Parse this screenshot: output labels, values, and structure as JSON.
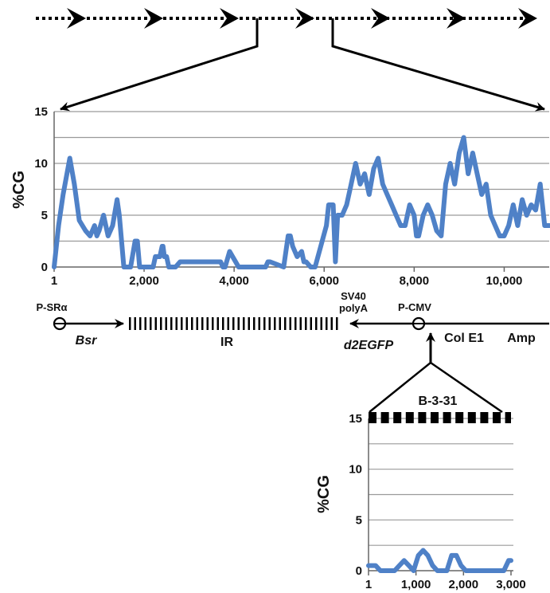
{
  "chart_data": [
    {
      "type": "line",
      "title": "",
      "xlabel": "",
      "ylabel": "%CG",
      "xlim": [
        1,
        11000
      ],
      "ylim": [
        0,
        15
      ],
      "grid": true,
      "x_tick_labels": [
        "1",
        "2,000",
        "4,000",
        "6,000",
        "8,000",
        "10,000"
      ],
      "x_tick_values": [
        1,
        2000,
        4000,
        6000,
        8000,
        10000
      ],
      "y_tick_labels": [
        "0",
        "5",
        "10",
        "15"
      ],
      "y_tick_values": [
        0,
        5,
        10,
        15
      ],
      "series": [
        {
          "color": "#4f81c7",
          "x": [
            1,
            100,
            200,
            350,
            450,
            560,
            700,
            800,
            900,
            950,
            1000,
            1100,
            1200,
            1300,
            1400,
            1450,
            1550,
            1600,
            1700,
            1800,
            1850,
            1900,
            2200,
            2250,
            2350,
            2400,
            2420,
            2450,
            2500,
            2550,
            2600,
            2700,
            2800,
            3700,
            3750,
            3800,
            3900,
            4100,
            4150,
            4200,
            4300,
            4700,
            4750,
            4800,
            5100,
            5200,
            5250,
            5300,
            5400,
            5500,
            5550,
            5600,
            5700,
            5800,
            6050,
            6100,
            6200,
            6250,
            6300,
            6400,
            6500,
            6600,
            6700,
            6800,
            6900,
            7000,
            7100,
            7200,
            7300,
            7400,
            7500,
            7600,
            7700,
            7800,
            7900,
            8000,
            8050,
            8100,
            8200,
            8300,
            8400,
            8500,
            8600,
            8700,
            8800,
            8900,
            9000,
            9100,
            9200,
            9300,
            9400,
            9500,
            9600,
            9700,
            9800,
            9900,
            10000,
            10100,
            10200,
            10300,
            10400,
            10500,
            10600,
            10700,
            10800,
            10900,
            11000
          ],
          "y": [
            0,
            4,
            7,
            10.5,
            8,
            4.5,
            3.5,
            3,
            4,
            3,
            3.5,
            5,
            3,
            4,
            6.5,
            5,
            0,
            0,
            0,
            2.5,
            2.5,
            0,
            0,
            1,
            1,
            2,
            2,
            1,
            1,
            0,
            0,
            0,
            0.5,
            0.5,
            0,
            0,
            1.5,
            0,
            0,
            0,
            0,
            0,
            0.5,
            0.5,
            0,
            3,
            3,
            2,
            1,
            1.5,
            0.5,
            0.5,
            0,
            0,
            4,
            6,
            6,
            0.5,
            5,
            5,
            6,
            8,
            10,
            8,
            9,
            7,
            9.5,
            10.5,
            8,
            7,
            6,
            5,
            4,
            4,
            6,
            5,
            3,
            3,
            5,
            6,
            5,
            3.5,
            3,
            8,
            10,
            8,
            11,
            12.5,
            9,
            11,
            9,
            7,
            8,
            5,
            4,
            3,
            3,
            4,
            6,
            4,
            6.5,
            5,
            6,
            5.5,
            8,
            4,
            4
          ]
        }
      ]
    },
    {
      "type": "line",
      "title": "B-3-31",
      "xlabel": "",
      "ylabel": "%CG",
      "xlim": [
        1,
        3000
      ],
      "ylim": [
        0,
        15
      ],
      "grid": true,
      "x_tick_labels": [
        "1",
        "1,000",
        "2,000",
        "3,000"
      ],
      "x_tick_values": [
        1,
        1000,
        2000,
        3000
      ],
      "y_tick_labels": [
        "0",
        "5",
        "10",
        "15"
      ],
      "y_tick_values": [
        0,
        5,
        10,
        15
      ],
      "series": [
        {
          "color": "#4f81c7",
          "x": [
            1,
            150,
            250,
            350,
            450,
            550,
            650,
            750,
            850,
            950,
            1050,
            1150,
            1250,
            1350,
            1450,
            1550,
            1650,
            1750,
            1850,
            1950,
            2050,
            2150,
            2250,
            2350,
            2450,
            2550,
            2650,
            2750,
            2850,
            2950,
            3000
          ],
          "y": [
            0.5,
            0.5,
            0,
            0,
            0,
            0,
            0.5,
            1,
            0.5,
            0,
            1.5,
            2,
            1.5,
            0.5,
            0,
            0,
            0,
            1.5,
            1.5,
            0.5,
            0,
            0,
            0,
            0,
            0,
            0,
            0,
            0,
            0,
            1,
            1
          ]
        }
      ]
    }
  ],
  "construct_map": {
    "labels": {
      "psra": "P-SRα",
      "bsr": "Bsr",
      "ir": "IR",
      "sv40_line1": "SV40",
      "sv40_line2": "polyA",
      "pcmv": "P-CMV",
      "d2egfp": "d2EGFP",
      "cole1": "Col E1",
      "amp": "Amp"
    },
    "colors": {
      "line": "#000000"
    }
  }
}
